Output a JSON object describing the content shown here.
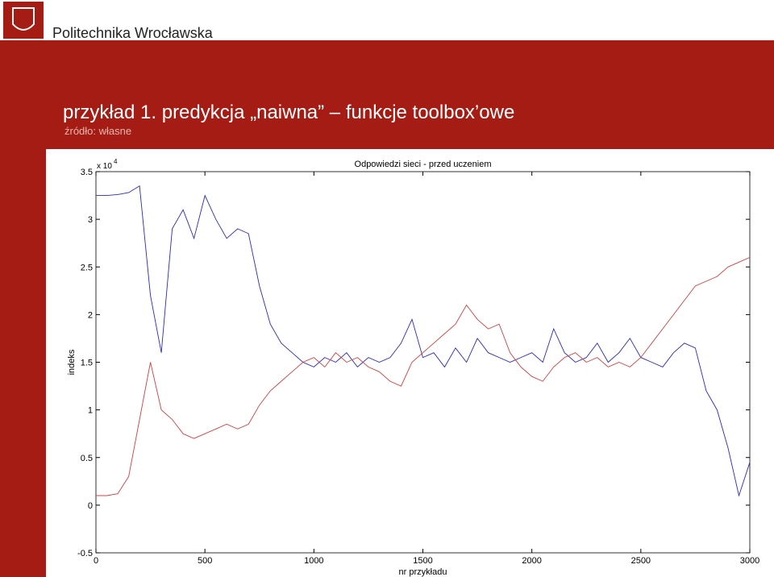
{
  "header": {
    "institution": "Politechnika Wrocławska"
  },
  "slide": {
    "title": "przykład 1. predykcja „naiwna” – funkcje toolbox’owe",
    "source": "źródło: własne"
  },
  "chart_data": {
    "type": "line",
    "title": "Odpowiedzi sieci - przed uczeniem",
    "x_label": "nr przykładu",
    "y_label": "indeks",
    "y_exponent_base": "x 10",
    "y_exponent_power": "4",
    "x": [
      0,
      50,
      100,
      150,
      200,
      250,
      300,
      350,
      400,
      450,
      500,
      550,
      600,
      650,
      700,
      750,
      800,
      850,
      900,
      950,
      1000,
      1050,
      1100,
      1150,
      1200,
      1250,
      1300,
      1350,
      1400,
      1450,
      1500,
      1550,
      1600,
      1650,
      1700,
      1750,
      1800,
      1850,
      1900,
      1950,
      2000,
      2050,
      2100,
      2150,
      2200,
      2250,
      2300,
      2350,
      2400,
      2450,
      2500,
      2550,
      2600,
      2650,
      2700,
      2750,
      2800,
      2850,
      2900,
      2950,
      3000
    ],
    "series": [
      {
        "color": "#2a2ab8",
        "values": [
          3.25,
          3.25,
          3.26,
          3.28,
          3.35,
          2.2,
          1.6,
          2.9,
          3.1,
          2.8,
          3.25,
          3.0,
          2.8,
          2.9,
          2.85,
          2.3,
          1.9,
          1.7,
          1.6,
          1.5,
          1.45,
          1.55,
          1.5,
          1.6,
          1.45,
          1.55,
          1.5,
          1.55,
          1.7,
          1.95,
          1.55,
          1.6,
          1.45,
          1.65,
          1.5,
          1.75,
          1.6,
          1.55,
          1.5,
          1.55,
          1.6,
          1.5,
          1.85,
          1.6,
          1.5,
          1.55,
          1.7,
          1.5,
          1.6,
          1.75,
          1.55,
          1.5,
          1.45,
          1.6,
          1.7,
          1.65,
          1.2,
          1.0,
          0.6,
          0.1,
          0.45
        ]
      },
      {
        "color": "#d04040",
        "values": [
          0.1,
          0.1,
          0.12,
          0.3,
          0.9,
          1.5,
          1.0,
          0.9,
          0.75,
          0.7,
          0.75,
          0.8,
          0.85,
          0.8,
          0.85,
          1.05,
          1.2,
          1.3,
          1.4,
          1.5,
          1.55,
          1.45,
          1.6,
          1.5,
          1.55,
          1.45,
          1.4,
          1.3,
          1.25,
          1.5,
          1.6,
          1.7,
          1.8,
          1.9,
          2.1,
          1.95,
          1.85,
          1.9,
          1.6,
          1.45,
          1.35,
          1.3,
          1.45,
          1.55,
          1.6,
          1.5,
          1.55,
          1.45,
          1.5,
          1.45,
          1.55,
          1.7,
          1.85,
          2.0,
          2.15,
          2.3,
          2.35,
          2.4,
          2.5,
          2.55,
          2.6
        ]
      }
    ],
    "xlim": [
      0,
      3000
    ],
    "xticks": [
      0,
      500,
      1000,
      1500,
      2000,
      2500,
      3000
    ],
    "ylim": [
      -0.5,
      3.5
    ],
    "yticks": [
      -0.5,
      0,
      0.5,
      1,
      1.5,
      2,
      2.5,
      3,
      3.5
    ]
  }
}
